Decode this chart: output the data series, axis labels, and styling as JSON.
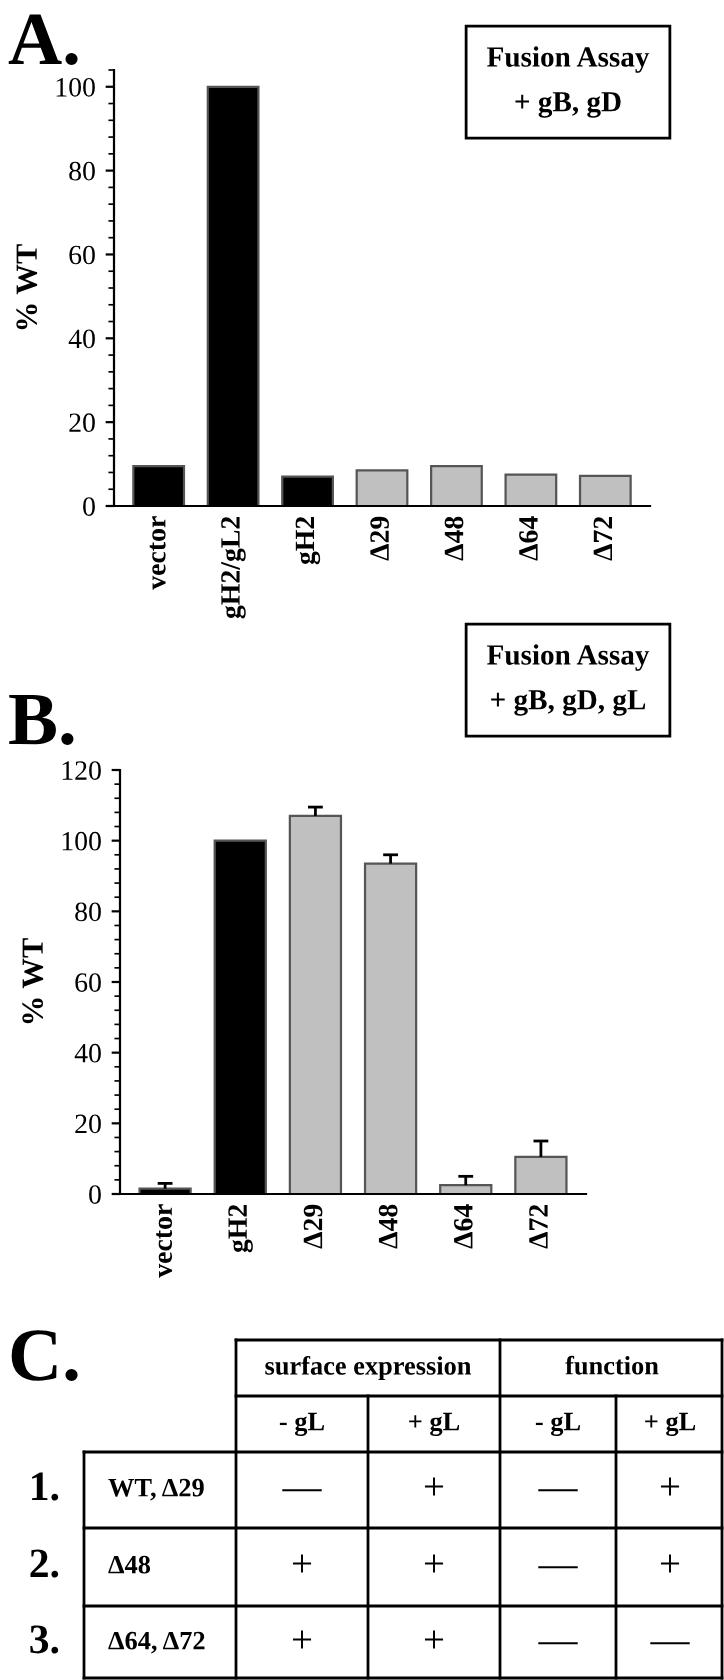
{
  "chart_data": [
    {
      "type": "bar",
      "title": "A.",
      "ylabel": "% WT",
      "annotations": [
        "Fusion Assay\n+ gB, gD"
      ],
      "categories": [
        "vector",
        "gH2/gL2",
        "gH2",
        "Δ29",
        "Δ48",
        "Δ64",
        "Δ72"
      ],
      "values": [
        9.5,
        100,
        7,
        8.5,
        9.5,
        7.5,
        7.2
      ],
      "colors": [
        "#000000",
        "#000000",
        "#000000",
        "#c0c0c0",
        "#c0c0c0",
        "#c0c0c0",
        "#c0c0c0"
      ],
      "ylim": [
        0,
        104
      ],
      "yticks": [
        0,
        20,
        40,
        60,
        80,
        100
      ]
    },
    {
      "type": "bar",
      "title": "B.",
      "ylabel": "% WT",
      "annotations": [
        "Fusion Assay\n+ gB, gD, gL"
      ],
      "categories": [
        "vector",
        "gH2",
        "Δ29",
        "Δ48",
        "Δ64",
        "Δ72"
      ],
      "values": [
        1.5,
        100,
        107,
        93.5,
        2.5,
        10.5
      ],
      "errors": [
        [
          1.5,
          3
        ],
        null,
        [
          107,
          109.5
        ],
        [
          93.5,
          96
        ],
        [
          2.5,
          5
        ],
        [
          10.5,
          15
        ]
      ],
      "colors": [
        "#000000",
        "#000000",
        "#c0c0c0",
        "#c0c0c0",
        "#c0c0c0",
        "#c0c0c0"
      ],
      "ylim": [
        0,
        120
      ],
      "yticks": [
        0,
        20,
        40,
        60,
        80,
        100,
        120
      ]
    },
    {
      "type": "other",
      "title": "C.",
      "annotations": [
        "surface expression",
        "function",
        "- gL",
        "+ gL",
        "- gL",
        "+ gL",
        "1.",
        "WT, Δ29",
        "—",
        "+",
        "—",
        "+",
        "2.",
        "Δ48",
        "+",
        "+",
        "—",
        "+",
        "3.",
        "Δ64, Δ72",
        "+",
        "+",
        "—",
        "—"
      ]
    }
  ]
}
